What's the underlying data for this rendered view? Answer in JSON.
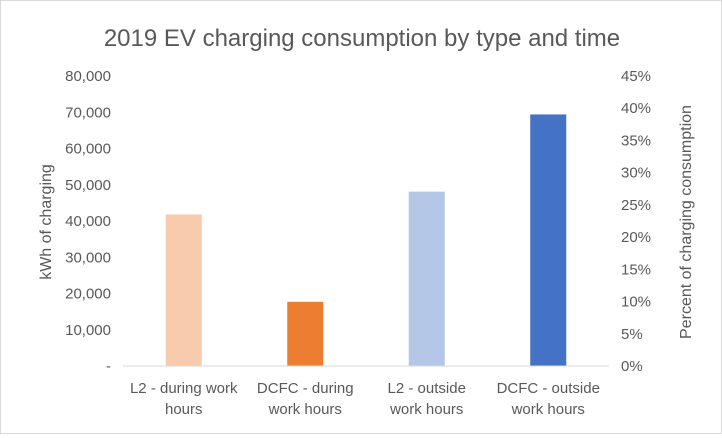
{
  "chart_data": {
    "type": "bar",
    "title": "2019 EV charging consumption by type and time",
    "categories": [
      [
        "L2 - during work",
        "hours"
      ],
      [
        "DCFC - during",
        "work hours"
      ],
      [
        "L2 - outside",
        "work hours"
      ],
      [
        "DCFC - outside",
        "work hours"
      ]
    ],
    "values": [
      41800,
      17700,
      48100,
      69400
    ],
    "bar_colors": [
      "#f8cbad",
      "#ed7d31",
      "#b4c7e7",
      "#4472c4"
    ],
    "ylabel": "kWh of charging",
    "ylim": [
      0,
      80000
    ],
    "y_ticks": [
      "-",
      "10,000",
      "20,000",
      "30,000",
      "40,000",
      "50,000",
      "60,000",
      "70,000",
      "80,000"
    ],
    "y2label": "Percent of  charging consumption",
    "y2lim": [
      0,
      0.45
    ],
    "y2_ticks": [
      "0%",
      "5%",
      "10%",
      "15%",
      "20%",
      "25%",
      "30%",
      "35%",
      "40%",
      "45%"
    ],
    "grid": false,
    "legend": "none"
  }
}
